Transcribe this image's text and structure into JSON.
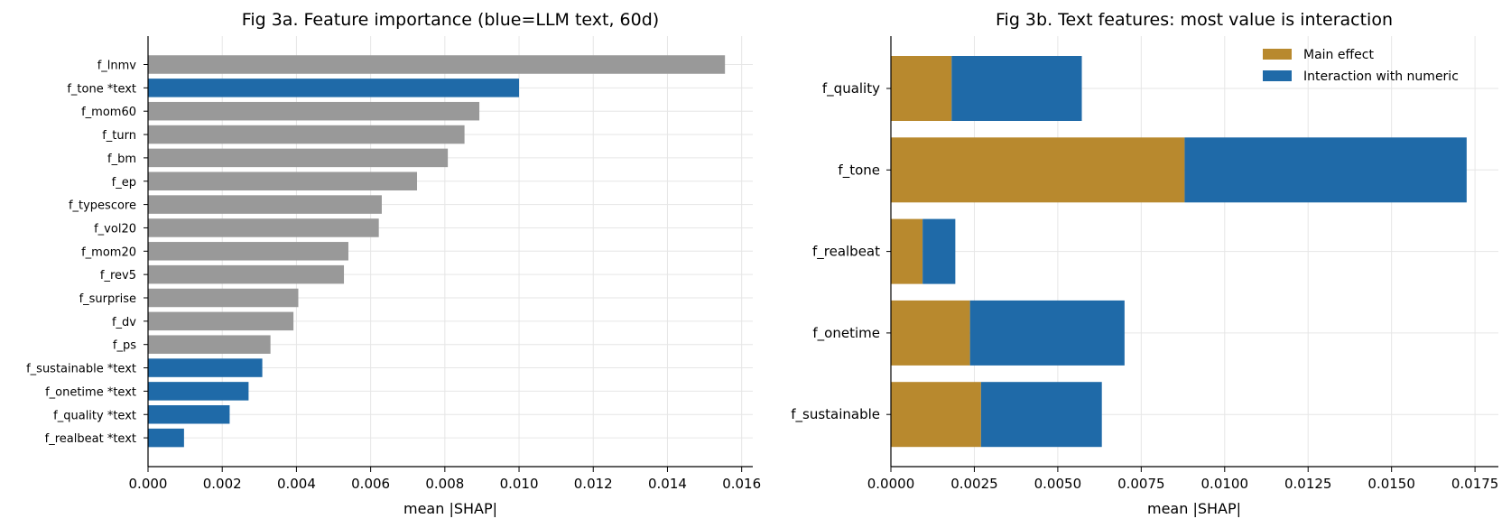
{
  "chart_data": [
    {
      "type": "bar",
      "orientation": "horizontal",
      "title": "Fig 3a. Feature importance (blue=LLM text, 60d)",
      "xlabel": "mean |SHAP|",
      "ylabel": "",
      "xlim": [
        0,
        0.0163
      ],
      "xticks": [
        "0.000",
        "0.002",
        "0.004",
        "0.006",
        "0.008",
        "0.010",
        "0.012",
        "0.014",
        "0.016"
      ],
      "xtick_values": [
        0,
        0.002,
        0.004,
        0.006,
        0.008,
        0.01,
        0.012,
        0.014,
        0.016
      ],
      "grid": true,
      "colors": {
        "numeric": "#999999",
        "text": "#1f6aa8"
      },
      "categories": [
        "f_lnmv",
        "f_tone *text",
        "f_mom60",
        "f_turn",
        "f_bm",
        "f_ep",
        "f_typescore",
        "f_vol20",
        "f_mom20",
        "f_rev5",
        "f_surprise",
        "f_dv",
        "f_ps",
        "f_sustainable *text",
        "f_onetime *text",
        "f_quality *text",
        "f_realbeat *text"
      ],
      "values": [
        0.01555,
        0.01,
        0.00893,
        0.00853,
        0.00808,
        0.00725,
        0.0063,
        0.00622,
        0.0054,
        0.00528,
        0.00405,
        0.00392,
        0.0033,
        0.00308,
        0.00271,
        0.0022,
        0.00097
      ],
      "is_text": [
        false,
        true,
        false,
        false,
        false,
        false,
        false,
        false,
        false,
        false,
        false,
        false,
        false,
        true,
        true,
        true,
        true
      ]
    },
    {
      "type": "bar",
      "orientation": "horizontal",
      "stacked": true,
      "title": "Fig 3b. Text features: most value is interaction",
      "xlabel": "mean |SHAP|",
      "ylabel": "",
      "xlim": [
        0,
        0.0182
      ],
      "xticks": [
        "0.0000",
        "0.0025",
        "0.0050",
        "0.0075",
        "0.0100",
        "0.0125",
        "0.0150",
        "0.0175"
      ],
      "xtick_values": [
        0,
        0.0025,
        0.005,
        0.0075,
        0.01,
        0.0125,
        0.015,
        0.0175
      ],
      "grid": true,
      "legend_position": "top-right",
      "categories": [
        "f_quality",
        "f_tone",
        "f_realbeat",
        "f_onetime",
        "f_sustainable"
      ],
      "series": [
        {
          "name": "Main effect",
          "color": "#b8892e",
          "values": [
            0.00182,
            0.0088,
            0.00095,
            0.00237,
            0.0027
          ]
        },
        {
          "name": "Interaction with numeric",
          "color": "#1f6aa8",
          "values": [
            0.0039,
            0.00845,
            0.00098,
            0.00463,
            0.00362
          ]
        }
      ]
    }
  ]
}
